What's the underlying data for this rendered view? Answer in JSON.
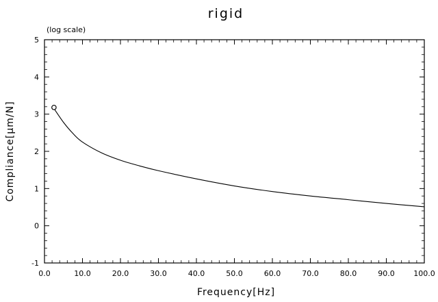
{
  "chart_data": {
    "type": "line",
    "title": "rigid",
    "annotation": "(log scale)",
    "xlabel": "Frequency[Hz]",
    "ylabel": "Compliance[μm/N]",
    "xlim": [
      0,
      100
    ],
    "ylim": [
      -1,
      5
    ],
    "y_scale": "log",
    "grid": false,
    "legend": "none",
    "x_ticks": [
      "0.0",
      "10.0",
      "20.0",
      "30.0",
      "40.0",
      "50.0",
      "60.0",
      "70.0",
      "80.0",
      "90.0",
      "100.0"
    ],
    "y_ticks": [
      "-1",
      "0",
      "1",
      "2",
      "3",
      "4",
      "5"
    ],
    "series": [
      {
        "marker_point": {
          "x": 2.5,
          "y": 3.18
        },
        "x": [
          2.5,
          5,
          7.5,
          10,
          15,
          20,
          25,
          30,
          40,
          50,
          60,
          70,
          80,
          90,
          100
        ],
        "y": [
          3.15,
          2.78,
          2.48,
          2.25,
          1.96,
          1.76,
          1.61,
          1.48,
          1.26,
          1.07,
          0.92,
          0.8,
          0.7,
          0.6,
          0.51
        ]
      }
    ]
  }
}
